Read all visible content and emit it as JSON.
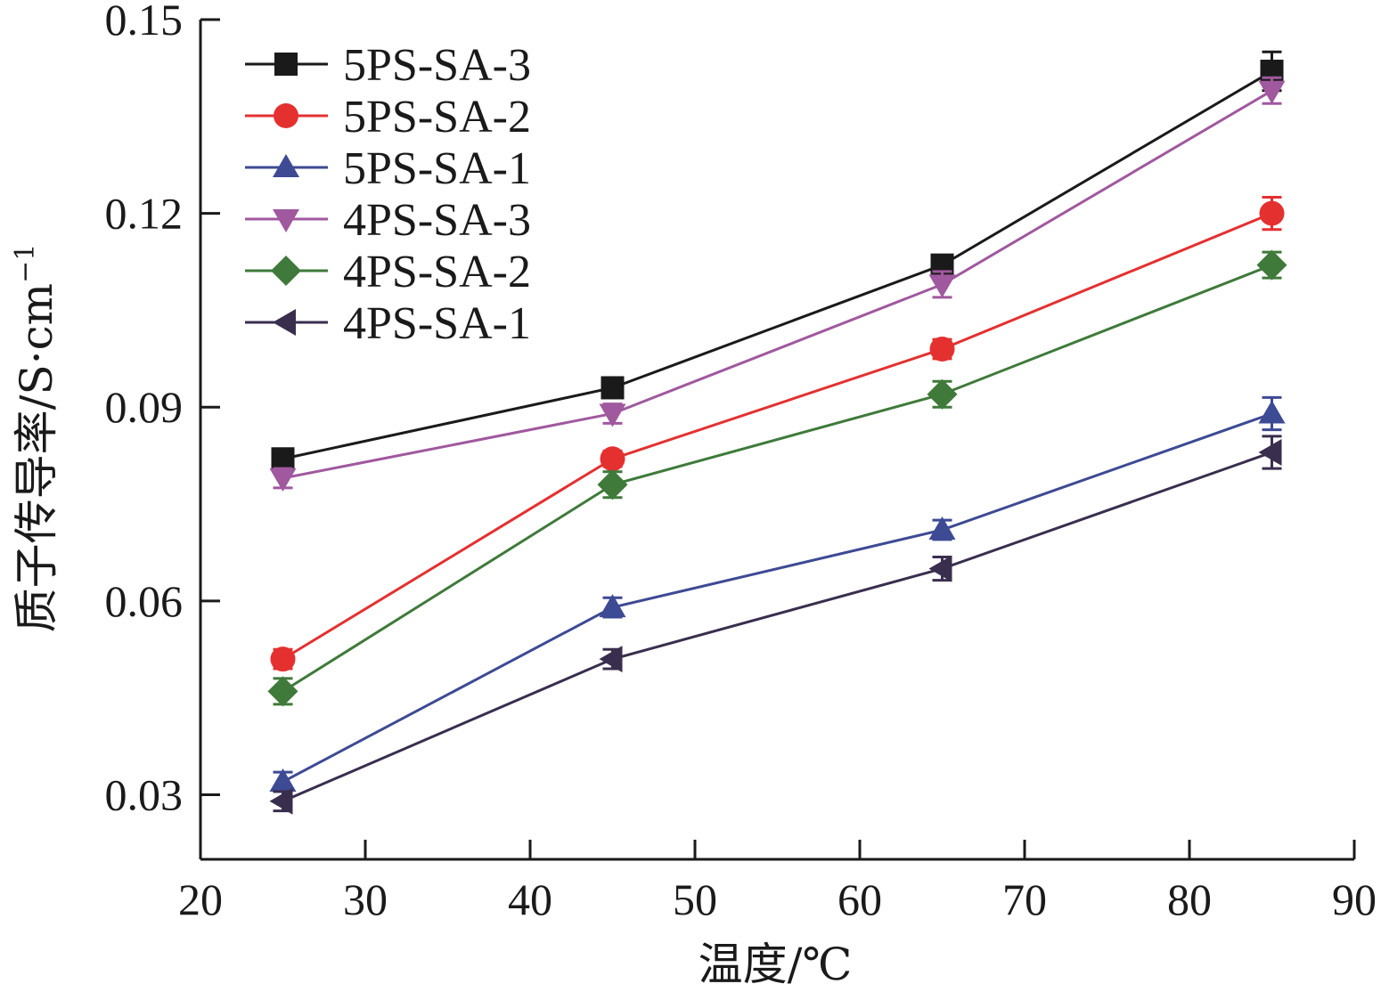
{
  "chart_data": {
    "type": "line",
    "xlabel": "温度/℃",
    "ylabel": "质子传导率/S·cm",
    "ylabel_sup": "−1",
    "xlim": [
      20,
      90
    ],
    "ylim": [
      0.02,
      0.15
    ],
    "x_ticks": [
      20,
      30,
      40,
      50,
      60,
      70,
      80,
      90
    ],
    "x_tick_labels": [
      "20",
      "30",
      "40",
      "50",
      "60",
      "70",
      "80",
      "90"
    ],
    "y_ticks": [
      0.03,
      0.06,
      0.09,
      0.12,
      0.15
    ],
    "y_tick_labels": [
      "0.03",
      "0.06",
      "0.09",
      "0.12",
      "0.15"
    ],
    "legend_position": "top-left",
    "grid": false,
    "x": [
      25,
      45,
      65,
      85
    ],
    "series": [
      {
        "name": "5PS-SA-3",
        "color": "#1a1a1a",
        "marker": "square",
        "values": [
          0.082,
          0.093,
          0.112,
          0.142
        ],
        "errors": [
          0.0015,
          0.0015,
          0.0015,
          0.003
        ]
      },
      {
        "name": "5PS-SA-2",
        "color": "#e53030",
        "marker": "circle",
        "values": [
          0.051,
          0.082,
          0.099,
          0.12
        ],
        "errors": [
          0.0015,
          0.0012,
          0.0015,
          0.0025
        ]
      },
      {
        "name": "5PS-SA-1",
        "color": "#3d4a94",
        "marker": "triangle-up",
        "values": [
          0.032,
          0.059,
          0.071,
          0.089
        ],
        "errors": [
          0.0015,
          0.0015,
          0.0015,
          0.0025
        ]
      },
      {
        "name": "4PS-SA-3",
        "color": "#a0589e",
        "marker": "triangle-down",
        "values": [
          0.079,
          0.089,
          0.109,
          0.139
        ],
        "errors": [
          0.0015,
          0.0015,
          0.002,
          0.002
        ]
      },
      {
        "name": "4PS-SA-2",
        "color": "#3f7a3a",
        "marker": "diamond",
        "values": [
          0.046,
          0.078,
          0.092,
          0.112
        ],
        "errors": [
          0.002,
          0.002,
          0.002,
          0.002
        ]
      },
      {
        "name": "4PS-SA-1",
        "color": "#3a2e4e",
        "marker": "triangle-left",
        "values": [
          0.029,
          0.051,
          0.065,
          0.083
        ],
        "errors": [
          0.0015,
          0.0015,
          0.0018,
          0.0025
        ]
      }
    ]
  }
}
